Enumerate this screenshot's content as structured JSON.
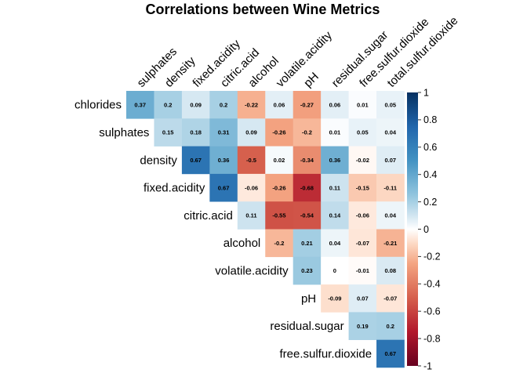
{
  "chart_data": {
    "type": "heatmap",
    "title": "Correlations between Wine Metrics",
    "columns": [
      "sulphates",
      "density",
      "fixed.acidity",
      "citric.acid",
      "alcohol",
      "volatile.acidity",
      "pH",
      "residual.sugar",
      "free.sulfur.dioxide",
      "total.sulfur.dioxide"
    ],
    "rows": [
      {
        "name": "chlorides",
        "values": [
          0.37,
          0.2,
          0.09,
          0.2,
          -0.22,
          0.06,
          -0.27,
          0.06,
          0.01,
          0.05
        ]
      },
      {
        "name": "sulphates",
        "values": [
          null,
          0.15,
          0.18,
          0.31,
          0.09,
          -0.26,
          -0.2,
          0.01,
          0.05,
          0.04
        ]
      },
      {
        "name": "density",
        "values": [
          null,
          null,
          0.67,
          0.36,
          -0.5,
          0.02,
          -0.34,
          0.36,
          -0.02,
          0.07
        ]
      },
      {
        "name": "fixed.acidity",
        "values": [
          null,
          null,
          null,
          0.67,
          -0.06,
          -0.26,
          -0.68,
          0.11,
          -0.15,
          -0.11
        ]
      },
      {
        "name": "citric.acid",
        "values": [
          null,
          null,
          null,
          null,
          0.11,
          -0.55,
          -0.54,
          0.14,
          -0.06,
          0.04
        ]
      },
      {
        "name": "alcohol",
        "values": [
          null,
          null,
          null,
          null,
          null,
          -0.2,
          0.21,
          0.04,
          -0.07,
          -0.21
        ]
      },
      {
        "name": "volatile.acidity",
        "values": [
          null,
          null,
          null,
          null,
          null,
          null,
          0.23,
          0,
          -0.01,
          0.08
        ]
      },
      {
        "name": "pH",
        "values": [
          null,
          null,
          null,
          null,
          null,
          null,
          null,
          -0.09,
          0.07,
          -0.07
        ]
      },
      {
        "name": "residual.sugar",
        "values": [
          null,
          null,
          null,
          null,
          null,
          null,
          null,
          null,
          0.19,
          0.2
        ]
      },
      {
        "name": "free.sulfur.dioxide",
        "values": [
          null,
          null,
          null,
          null,
          null,
          null,
          null,
          null,
          null,
          0.67
        ]
      }
    ],
    "colorbar": {
      "range": [
        -1,
        1
      ],
      "ticks": [
        {
          "value": 1,
          "label": "1"
        },
        {
          "value": 0.8,
          "label": "0.8"
        },
        {
          "value": 0.6,
          "label": "0.6"
        },
        {
          "value": 0.4,
          "label": "0.4"
        },
        {
          "value": 0.2,
          "label": "0.2"
        },
        {
          "value": 0,
          "label": "0"
        },
        {
          "value": -0.2,
          "label": "-0.2"
        },
        {
          "value": -0.4,
          "label": "-0.4"
        },
        {
          "value": -0.6,
          "label": "-0.6"
        },
        {
          "value": -0.8,
          "label": "-0.8"
        },
        {
          "value": -1,
          "label": "-1"
        }
      ],
      "color_negative": "#67001f",
      "color_mid_negative": "#b2182b",
      "color_zero": "#ffffff",
      "color_mid_positive": "#2166ac",
      "color_positive": "#053061"
    },
    "legend_placement": "right",
    "grid": false,
    "layout": "upper-triangle"
  }
}
